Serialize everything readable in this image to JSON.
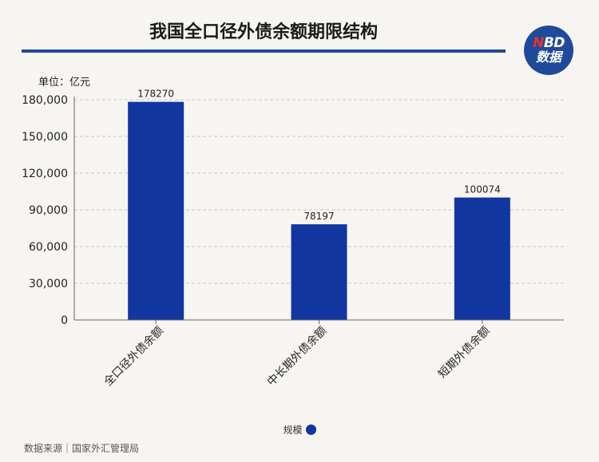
{
  "header": {
    "title": "我国全口径外债余额期限结构"
  },
  "logo": {
    "line1_n": "N",
    "line1_rest": "BD",
    "line2": "数据"
  },
  "unit_label": "单位：亿元",
  "source": "数据来源｜国家外汇管理局",
  "colors": {
    "bar": "#1236a0",
    "accent": "#1f4a9c",
    "logo_red": "#e8332a"
  },
  "chart_data": {
    "type": "bar",
    "title": "我国全口径外债余额期限结构",
    "categories": [
      "全口径外债余额",
      "中长期外债余额",
      "短期外债余额"
    ],
    "series": [
      {
        "name": "规模",
        "values": [
          178270,
          78197,
          100074
        ]
      }
    ],
    "ylim": [
      0,
      180000
    ],
    "yticks": [
      0,
      30000,
      60000,
      90000,
      120000,
      150000,
      180000
    ],
    "ytick_labels": [
      "0",
      "30,000",
      "60,000",
      "90,000",
      "120,000",
      "150,000",
      "180,000"
    ],
    "data_labels": [
      "178270",
      "78197",
      "100074"
    ],
    "grid": true,
    "legend": "bottom-center"
  }
}
